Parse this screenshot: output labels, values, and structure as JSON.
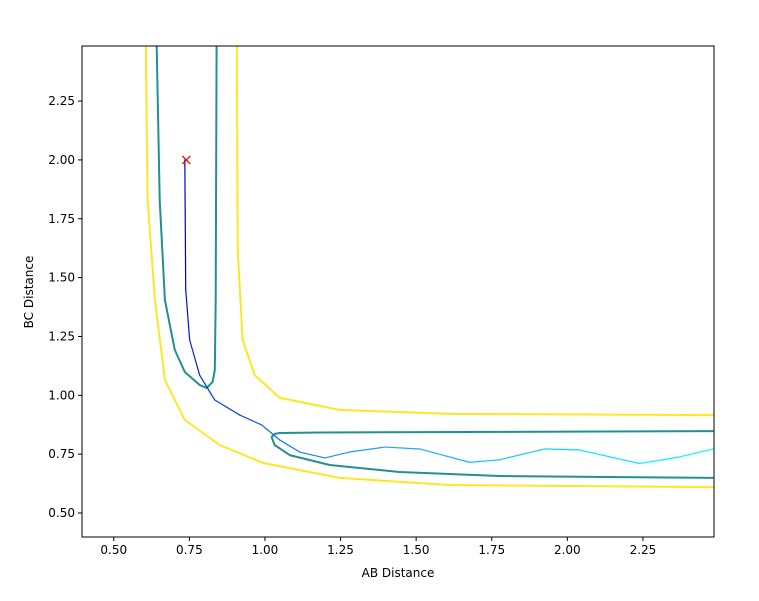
{
  "chart_data": {
    "type": "line",
    "title": "",
    "xlabel": "AB Distance",
    "ylabel": "BC Distance",
    "xlim": [
      0.395,
      2.485
    ],
    "ylim": [
      0.398,
      2.484
    ],
    "xticks": [
      0.5,
      0.75,
      1.0,
      1.25,
      1.5,
      1.75,
      2.0,
      2.25
    ],
    "xtick_labels": [
      "0.50",
      "0.75",
      "1.00",
      "1.25",
      "1.50",
      "1.75",
      "2.00",
      "2.25"
    ],
    "yticks": [
      0.5,
      0.75,
      1.0,
      1.25,
      1.5,
      1.75,
      2.0,
      2.25
    ],
    "ytick_labels": [
      "0.50",
      "0.75",
      "1.00",
      "1.25",
      "1.50",
      "1.75",
      "2.00",
      "2.25"
    ],
    "grid": false,
    "contours": [
      {
        "color": "#fde725",
        "x": [
          0.606,
          0.612,
          0.636,
          0.669,
          0.735,
          0.85,
          0.996,
          1.247,
          1.611,
          2.483
        ],
        "y": [
          2.485,
          1.83,
          1.405,
          1.065,
          0.895,
          0.789,
          0.712,
          0.649,
          0.619,
          0.61
        ]
      },
      {
        "color": "#fde725",
        "x": [
          0.907,
          0.91,
          0.926,
          0.966,
          1.049,
          1.247,
          1.611,
          2.483
        ],
        "y": [
          2.485,
          1.618,
          1.235,
          1.086,
          0.989,
          0.938,
          0.921,
          0.916
        ]
      },
      {
        "color": "#21918c",
        "x": [
          0.642,
          0.652,
          0.669,
          0.702,
          0.735,
          0.784,
          0.807,
          0.827,
          0.834,
          0.837,
          0.84
        ],
        "y": [
          2.485,
          1.83,
          1.405,
          1.193,
          1.099,
          1.044,
          1.031,
          1.057,
          1.108,
          1.405,
          2.485
        ]
      },
      {
        "color": "#21918c",
        "x": [
          2.483,
          1.776,
          1.445,
          1.214,
          1.082,
          1.032,
          1.022,
          1.032,
          1.049,
          1.181,
          2.483
        ],
        "y": [
          0.649,
          0.657,
          0.674,
          0.704,
          0.746,
          0.789,
          0.823,
          0.836,
          0.84,
          0.842,
          0.848
        ]
      }
    ],
    "trajectory": {
      "colors": [
        "#0000cd",
        "#1e90ff",
        "#00ffff"
      ],
      "x": [
        0.735,
        0.738,
        0.751,
        0.784,
        0.834,
        0.917,
        0.989,
        1.049,
        1.115,
        1.198,
        1.28,
        1.396,
        1.512,
        1.677,
        1.776,
        1.925,
        2.04,
        2.239,
        2.371,
        2.483
      ],
      "y": [
        2.0,
        1.448,
        1.235,
        1.086,
        0.98,
        0.916,
        0.874,
        0.81,
        0.759,
        0.734,
        0.759,
        0.78,
        0.772,
        0.715,
        0.726,
        0.772,
        0.768,
        0.71,
        0.738,
        0.772
      ]
    },
    "start_marker": {
      "x": 0.74,
      "y": 2.0,
      "symbol": "x",
      "color": "#ff0000"
    }
  }
}
